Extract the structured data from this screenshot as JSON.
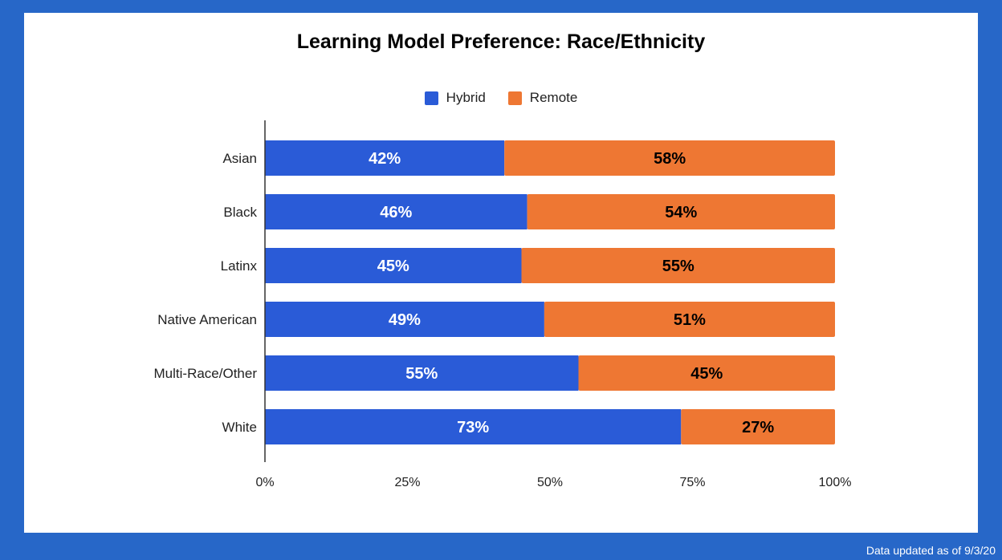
{
  "chart_data": {
    "type": "bar",
    "orientation": "horizontal",
    "stacked": true,
    "title": "Learning Model Preference: Race/Ethnicity",
    "categories": [
      "Asian",
      "Black",
      "Latinx",
      "Native American",
      "Multi-Race/Other",
      "White"
    ],
    "series": [
      {
        "name": "Hybrid",
        "color": "#2a5bd7",
        "values": [
          42,
          46,
          45,
          49,
          55,
          73
        ],
        "labels": [
          "42%",
          "46%",
          "45%",
          "49%",
          "55%",
          "73%"
        ]
      },
      {
        "name": "Remote",
        "color": "#ee7733",
        "values": [
          58,
          54,
          55,
          51,
          45,
          27
        ],
        "labels": [
          "58%",
          "54%",
          "55%",
          "51%",
          "45%",
          "27%"
        ]
      }
    ],
    "xlim": [
      0,
      100
    ],
    "x_ticks": [
      "0%",
      "25%",
      "50%",
      "75%",
      "100%"
    ],
    "legend_position": "top-center",
    "grid": false
  },
  "footer": {
    "note": "Data updated as of 9/3/20"
  }
}
